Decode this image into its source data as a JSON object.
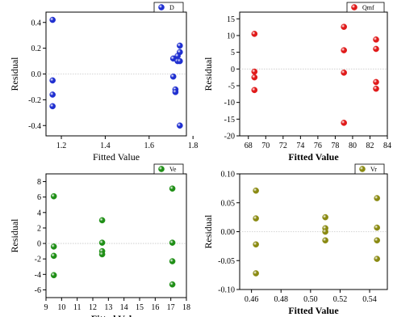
{
  "chart_data": [
    {
      "type": "scatter",
      "xlabel": "Fitted Value",
      "ylabel": "Residual",
      "xlim": [
        1.13,
        1.77
      ],
      "ylim": [
        -0.48,
        0.48
      ],
      "xticks": [
        1.2,
        1.4,
        1.6,
        1.8
      ],
      "xtick_labels": [
        "1.2",
        "1.4",
        "1.6",
        "1.8"
      ],
      "yticks": [
        -0.4,
        -0.2,
        0.0,
        0.2,
        0.4
      ],
      "ytick_labels": [
        "-0.4",
        "-0.2",
        "0.0",
        "0.2",
        "0.4"
      ],
      "zero_line": true,
      "legend_position": "top-right",
      "series": [
        {
          "name": "D",
          "color": "#1f2fd0",
          "x": [
            1.16,
            1.16,
            1.16,
            1.16,
            1.71,
            1.71,
            1.72,
            1.72,
            1.73,
            1.73,
            1.74,
            1.74,
            1.74,
            1.74
          ],
          "y": [
            0.42,
            -0.05,
            -0.16,
            -0.25,
            0.12,
            -0.02,
            -0.12,
            -0.14,
            0.14,
            0.1,
            0.22,
            0.17,
            0.1,
            -0.4
          ]
        }
      ]
    },
    {
      "type": "scatter",
      "xlabel": "Fitted Value",
      "ylabel": "Residual",
      "xlim": [
        67,
        84
      ],
      "ylim": [
        -20,
        17
      ],
      "xticks": [
        68,
        70,
        72,
        74,
        76,
        78,
        80,
        82,
        84
      ],
      "xtick_labels": [
        "68",
        "70",
        "72",
        "74",
        "76",
        "78",
        "80",
        "82",
        "84"
      ],
      "yticks": [
        -20,
        -15,
        -10,
        -5,
        0,
        5,
        10,
        15
      ],
      "ytick_labels": [
        "-20",
        "-15",
        "-10",
        "-5",
        "0",
        "5",
        "10",
        "15"
      ],
      "zero_line": true,
      "legend_position": "top-right",
      "series": [
        {
          "name": "Qmf",
          "color": "#e01a1a",
          "x": [
            68.7,
            68.7,
            68.7,
            68.7,
            79.0,
            79.0,
            79.0,
            79.0,
            82.7,
            82.7,
            82.7,
            82.7
          ],
          "y": [
            10.5,
            -0.8,
            -2.5,
            -6.3,
            12.6,
            5.6,
            -1.1,
            -16.1,
            8.8,
            6.0,
            -3.9,
            -5.9
          ]
        }
      ]
    },
    {
      "type": "scatter",
      "xlabel": "Fitted Value",
      "ylabel": "Residual",
      "xlim": [
        9,
        18
      ],
      "ylim": [
        -7,
        9
      ],
      "xticks": [
        9,
        10,
        11,
        12,
        13,
        14,
        15,
        16,
        17,
        18
      ],
      "xtick_labels": [
        "9",
        "10",
        "11",
        "12",
        "13",
        "14",
        "15",
        "16",
        "17",
        "18"
      ],
      "yticks": [
        -6,
        -4,
        -2,
        0,
        2,
        4,
        6,
        8
      ],
      "ytick_labels": [
        "-6",
        "-4",
        "-2",
        "0",
        "2",
        "4",
        "6",
        "8"
      ],
      "zero_line": true,
      "legend_position": "top-right",
      "series": [
        {
          "name": "Ve",
          "color": "#1f8f16",
          "x": [
            9.5,
            9.5,
            9.5,
            9.5,
            12.6,
            12.6,
            12.6,
            12.6,
            17.1,
            17.1,
            17.1,
            17.1
          ],
          "y": [
            6.1,
            -0.4,
            -1.6,
            -4.1,
            3.0,
            0.1,
            -1.0,
            -1.4,
            7.1,
            0.1,
            -2.3,
            -5.3
          ]
        }
      ]
    },
    {
      "type": "scatter",
      "xlabel": "Fitted Value",
      "ylabel": "Residual",
      "xlim": [
        0.452,
        0.552
      ],
      "ylim": [
        -0.1,
        0.1
      ],
      "xticks": [
        0.46,
        0.48,
        0.5,
        0.52,
        0.54
      ],
      "xtick_labels": [
        "0.46",
        "0.48",
        "0.50",
        "0.52",
        "0.54"
      ],
      "yticks": [
        -0.1,
        -0.05,
        0.0,
        0.05,
        0.1
      ],
      "ytick_labels": [
        "-0.10",
        "-0.05",
        "0.00",
        "0.05",
        "0.10"
      ],
      "zero_line": true,
      "legend_position": "top-right",
      "series": [
        {
          "name": "Vr",
          "color": "#8a8a12",
          "x": [
            0.463,
            0.463,
            0.463,
            0.463,
            0.51,
            0.51,
            0.51,
            0.51,
            0.545,
            0.545,
            0.545,
            0.545
          ],
          "y": [
            0.071,
            0.023,
            -0.022,
            -0.072,
            0.025,
            0.006,
            0.0,
            -0.015,
            0.058,
            0.007,
            -0.015,
            -0.047
          ]
        }
      ]
    }
  ]
}
